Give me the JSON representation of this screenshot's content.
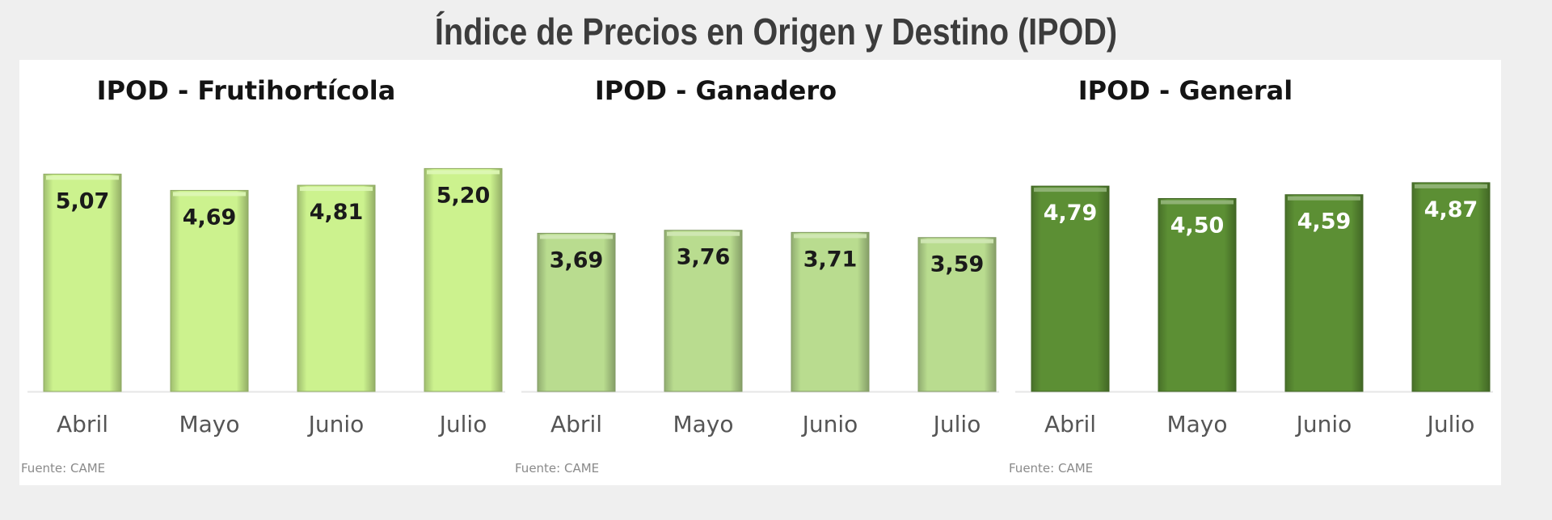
{
  "page": {
    "title": "Índice de Precios en Origen y Destino (IPOD)"
  },
  "chart_data": [
    {
      "type": "bar",
      "title": "IPOD - Frutihortícola",
      "categories": [
        "Abril",
        "Mayo",
        "Junio",
        "Julio"
      ],
      "values": [
        5.07,
        4.69,
        4.81,
        5.2
      ],
      "value_labels": [
        "5,07",
        "4,69",
        "4,81",
        "5,20"
      ],
      "source": "Fuente: CAME",
      "color": "#ccf28e",
      "label_color": "#1a1a1a"
    },
    {
      "type": "bar",
      "title": "IPOD - Ganadero",
      "categories": [
        "Abril",
        "Mayo",
        "Junio",
        "Julio"
      ],
      "values": [
        3.69,
        3.76,
        3.71,
        3.59
      ],
      "value_labels": [
        "3,69",
        "3,76",
        "3,71",
        "3,59"
      ],
      "source": "Fuente: CAME",
      "color": "#b9dc8f",
      "label_color": "#1a1a1a"
    },
    {
      "type": "bar",
      "title": "IPOD - General",
      "categories": [
        "Abril",
        "Mayo",
        "Junio",
        "Julio"
      ],
      "values": [
        4.79,
        4.5,
        4.59,
        4.87
      ],
      "value_labels": [
        "4,79",
        "4,50",
        "4,59",
        "4,87"
      ],
      "source": "Fuente: CAME",
      "color": "#5c8f34",
      "label_color": "#ffffff"
    }
  ]
}
